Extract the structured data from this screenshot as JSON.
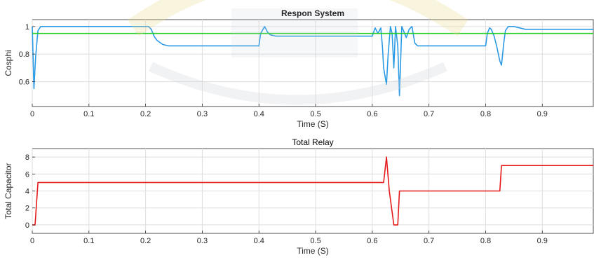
{
  "chart_data": [
    {
      "type": "line",
      "title": "Respon System",
      "xlabel": "Time (S)",
      "ylabel": "Cosphi",
      "xlim": [
        0,
        0.99
      ],
      "ylim": [
        0.42,
        1.05
      ],
      "xticks": [
        0,
        0.1,
        0.2,
        0.3,
        0.4,
        0.5,
        0.6,
        0.7,
        0.8,
        0.9
      ],
      "xtick_labels": [
        "0",
        "0.1",
        "0.2",
        "0.3",
        "0.4",
        "0.5",
        "0.6",
        "0.7",
        "0.8",
        "0.9"
      ],
      "yticks": [
        0.6,
        0.8,
        1
      ],
      "ytick_labels": [
        "0.6",
        "0.8",
        "1"
      ],
      "grid": true,
      "series": [
        {
          "color": "#2b9be6",
          "x": [
            0,
            0.003,
            0.006,
            0.01,
            0.015,
            0.02,
            0.03,
            0.04,
            0.1,
            0.205,
            0.21,
            0.215,
            0.22,
            0.23,
            0.24,
            0.3,
            0.4,
            0.403,
            0.41,
            0.415,
            0.42,
            0.43,
            0.45,
            0.5,
            0.6,
            0.605,
            0.61,
            0.615,
            0.618,
            0.62,
            0.625,
            0.628,
            0.632,
            0.635,
            0.638,
            0.641,
            0.645,
            0.648,
            0.65,
            0.652,
            0.655,
            0.66,
            0.665,
            0.67,
            0.675,
            0.68,
            0.69,
            0.7,
            0.72,
            0.75,
            0.8,
            0.803,
            0.807,
            0.81,
            0.815,
            0.82,
            0.825,
            0.828,
            0.832,
            0.835,
            0.84,
            0.85,
            0.86,
            0.87,
            0.9,
            0.95,
            0.99
          ],
          "y": [
            1.0,
            0.55,
            0.78,
            0.97,
            1.0,
            1.0,
            1.0,
            1.0,
            1.0,
            1.0,
            0.98,
            0.93,
            0.9,
            0.87,
            0.86,
            0.86,
            0.86,
            0.95,
            1.0,
            0.96,
            0.94,
            0.93,
            0.93,
            0.93,
            0.93,
            0.99,
            0.95,
            0.99,
            0.85,
            0.7,
            0.58,
            0.8,
            1.0,
            0.95,
            0.7,
            1.0,
            0.86,
            0.5,
            0.75,
            1.0,
            0.97,
            0.92,
            0.98,
            1.0,
            0.88,
            0.86,
            0.86,
            0.86,
            0.86,
            0.86,
            0.86,
            0.95,
            0.99,
            0.98,
            0.93,
            0.85,
            0.75,
            0.72,
            0.88,
            0.97,
            1.0,
            1.0,
            0.99,
            0.98,
            0.98,
            0.98,
            0.98
          ]
        },
        {
          "color": "#22cc22",
          "x": [
            0,
            0.99
          ],
          "y": [
            0.95,
            0.95
          ]
        }
      ]
    },
    {
      "type": "line",
      "title": "Total Relay",
      "xlabel": "Time (S)",
      "ylabel": "Total Capacitor",
      "xlim": [
        0,
        0.99
      ],
      "ylim": [
        -1,
        9
      ],
      "xticks": [
        0,
        0.1,
        0.2,
        0.3,
        0.4,
        0.5,
        0.6,
        0.7,
        0.8,
        0.9
      ],
      "xtick_labels": [
        "0",
        "0.1",
        "0.2",
        "0.3",
        "0.4",
        "0.5",
        "0.6",
        "0.7",
        "0.8",
        "0.9"
      ],
      "yticks": [
        0,
        2,
        4,
        6,
        8
      ],
      "ytick_labels": [
        "0",
        "2",
        "4",
        "6",
        "8"
      ],
      "grid": true,
      "series": [
        {
          "color": "#e61a1a",
          "x": [
            0,
            0.005,
            0.01,
            0.62,
            0.625,
            0.63,
            0.638,
            0.645,
            0.648,
            0.825,
            0.828,
            0.99
          ],
          "y": [
            0,
            0,
            5,
            5,
            8,
            4,
            0,
            0,
            4,
            4,
            7,
            7
          ]
        }
      ]
    }
  ]
}
